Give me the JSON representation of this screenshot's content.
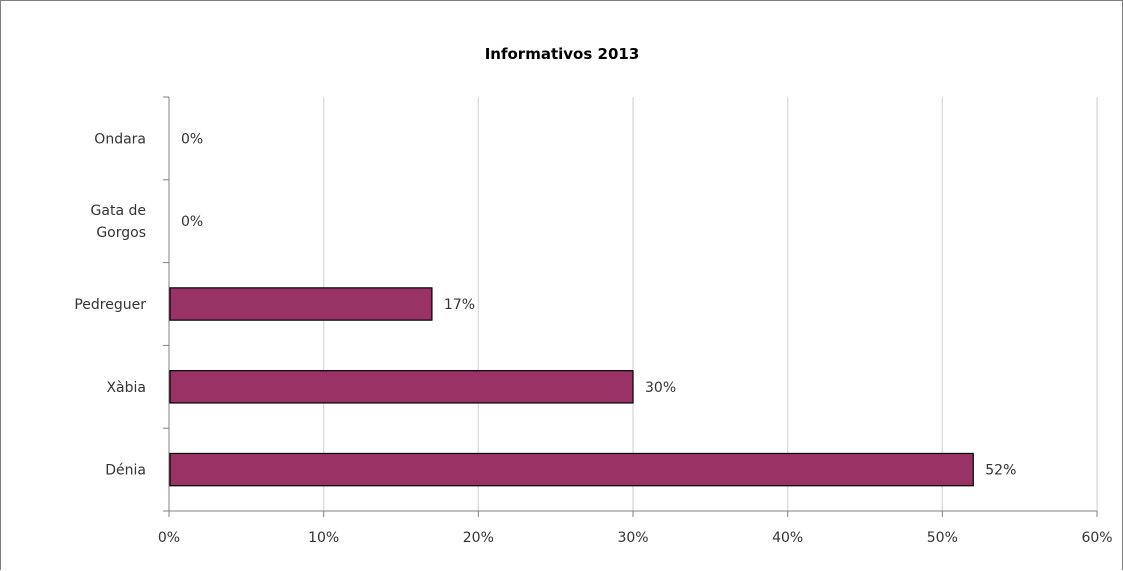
{
  "chart_data": {
    "type": "bar",
    "orientation": "horizontal",
    "title": "Informativos 2013",
    "xlabel": "",
    "ylabel": "",
    "categories": [
      "Dénia",
      "Xàbia",
      "Pedreguer",
      "Gata de Gorgos",
      "Ondara"
    ],
    "category_label_lines": [
      [
        "Dénia"
      ],
      [
        "Xàbia"
      ],
      [
        "Pedreguer"
      ],
      [
        "Gata de",
        "Gorgos"
      ],
      [
        "Ondara"
      ]
    ],
    "values": [
      52,
      30,
      17,
      0,
      0
    ],
    "value_labels": [
      "52%",
      "30%",
      "17%",
      "0%",
      "0%"
    ],
    "xlim": [
      0,
      60
    ],
    "x_ticks": [
      0,
      10,
      20,
      30,
      40,
      50,
      60
    ],
    "x_tick_labels": [
      "0%",
      "10%",
      "20%",
      "30%",
      "40%",
      "50%",
      "60%"
    ],
    "grid": "vertical",
    "legend": "none",
    "colors": {
      "bar_fill": "#993366",
      "bar_stroke": "#000000",
      "gridline": "#d9d9d9",
      "axis": "#808080",
      "frame": "#808080"
    }
  }
}
